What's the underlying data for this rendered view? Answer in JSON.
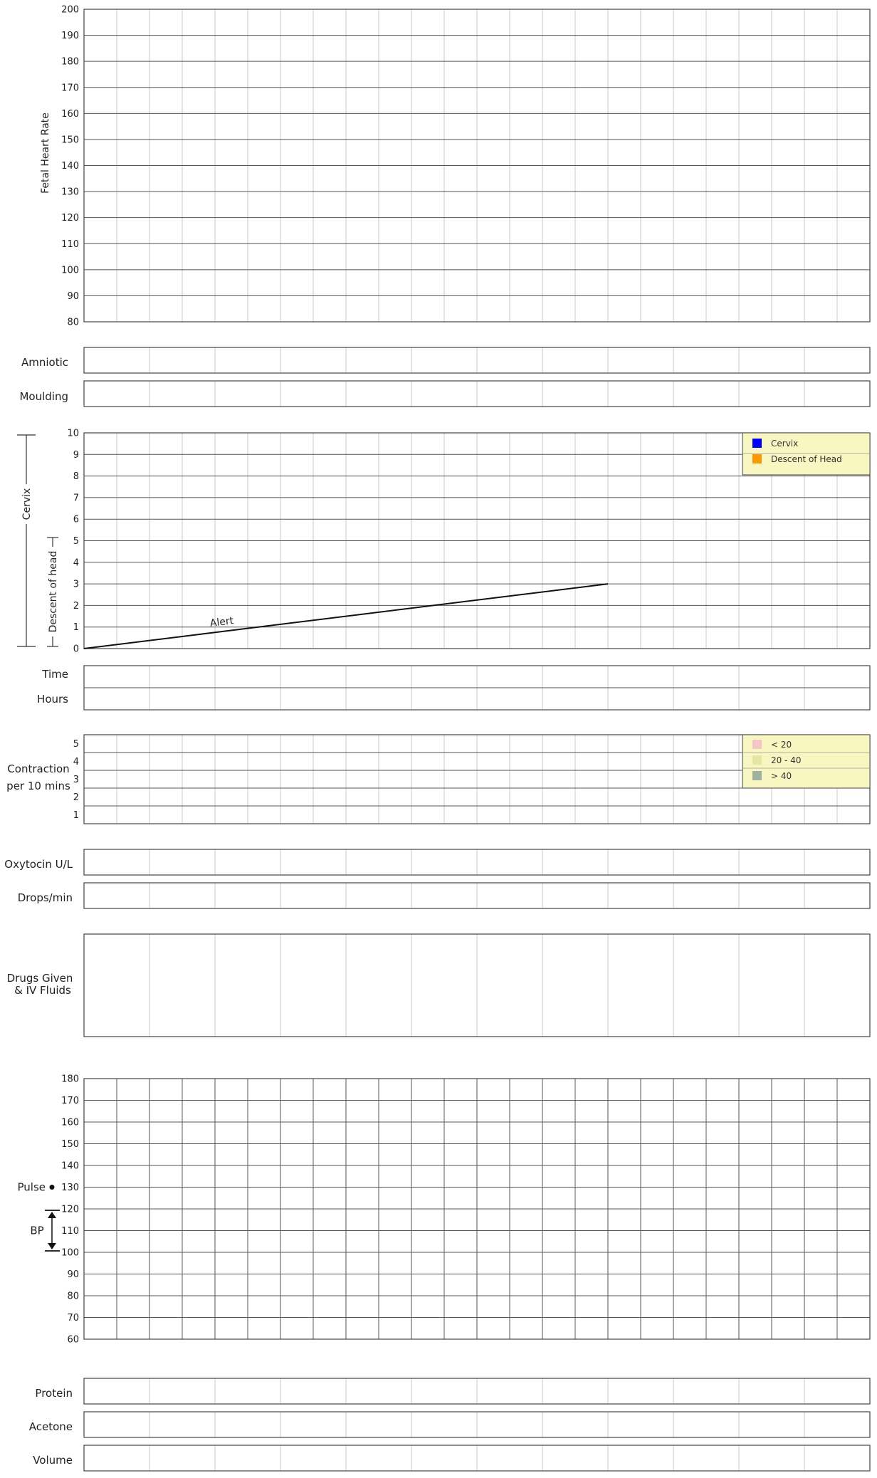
{
  "chart_data": [
    {
      "type": "line",
      "name": "fetal_heart_rate",
      "ylabel": "Fetal Heart Rate",
      "ylim": [
        80,
        200
      ],
      "yticks": [
        "200",
        "190",
        "180",
        "170",
        "160",
        "150",
        "140",
        "130",
        "120",
        "110",
        "100",
        "90",
        "80"
      ],
      "series": []
    },
    {
      "type": "table",
      "name": "amniotic",
      "label": "Amniotic",
      "cells": []
    },
    {
      "type": "table",
      "name": "moulding",
      "label": "Moulding",
      "cells": []
    },
    {
      "type": "line",
      "name": "cervicograph",
      "ylim": [
        0,
        10
      ],
      "yticks": [
        "10",
        "9",
        "8",
        "7",
        "6",
        "5",
        "4",
        "3",
        "2",
        "1",
        "0"
      ],
      "bracket_labels": {
        "cervix": "Cervix",
        "descent": "Descent of head"
      },
      "legend": [
        {
          "label": "Cervix",
          "color": "#0000ff"
        },
        {
          "label": "Descent of Head",
          "color": "#ff9800"
        }
      ],
      "legend_position": "top-right",
      "alert_line": {
        "label": "Alert",
        "x": [
          0,
          16
        ],
        "y": [
          0,
          3
        ]
      },
      "x_columns": 24
    },
    {
      "type": "table",
      "name": "time",
      "label": "Time",
      "cells": []
    },
    {
      "type": "table",
      "name": "hours",
      "label": "Hours",
      "cells": []
    },
    {
      "type": "bar",
      "name": "contractions",
      "ylabel_lines": [
        "Contraction",
        "per 10 mins"
      ],
      "yticks": [
        "5",
        "4",
        "3",
        "2",
        "1"
      ],
      "legend": [
        {
          "label": "< 20",
          "color": "#f4c6c6"
        },
        {
          "label": "20 - 40",
          "color": "#e6e6a4"
        },
        {
          "label": "> 40",
          "color": "#9fb19f"
        }
      ],
      "legend_position": "top-right",
      "series": []
    },
    {
      "type": "table",
      "name": "oxytocin",
      "label": "Oxytocin U/L",
      "cells": []
    },
    {
      "type": "table",
      "name": "drops",
      "label": "Drops/min",
      "cells": []
    },
    {
      "type": "table",
      "name": "drugs",
      "label_lines": [
        "Drugs Given",
        "& IV Fluids"
      ],
      "cells": []
    },
    {
      "type": "line",
      "name": "pulse_bp",
      "ylim": [
        60,
        180
      ],
      "yticks": [
        "180",
        "170",
        "160",
        "150",
        "140",
        "130",
        "120",
        "110",
        "100",
        "90",
        "80",
        "70",
        "60"
      ],
      "pulse_label": "Pulse",
      "bp_label": "BP",
      "series": []
    },
    {
      "type": "table",
      "name": "protein",
      "label": "Protein",
      "cells": []
    },
    {
      "type": "table",
      "name": "acetone",
      "label": "Acetone",
      "cells": []
    },
    {
      "type": "table",
      "name": "volume",
      "label": "Volume",
      "cells": []
    }
  ]
}
